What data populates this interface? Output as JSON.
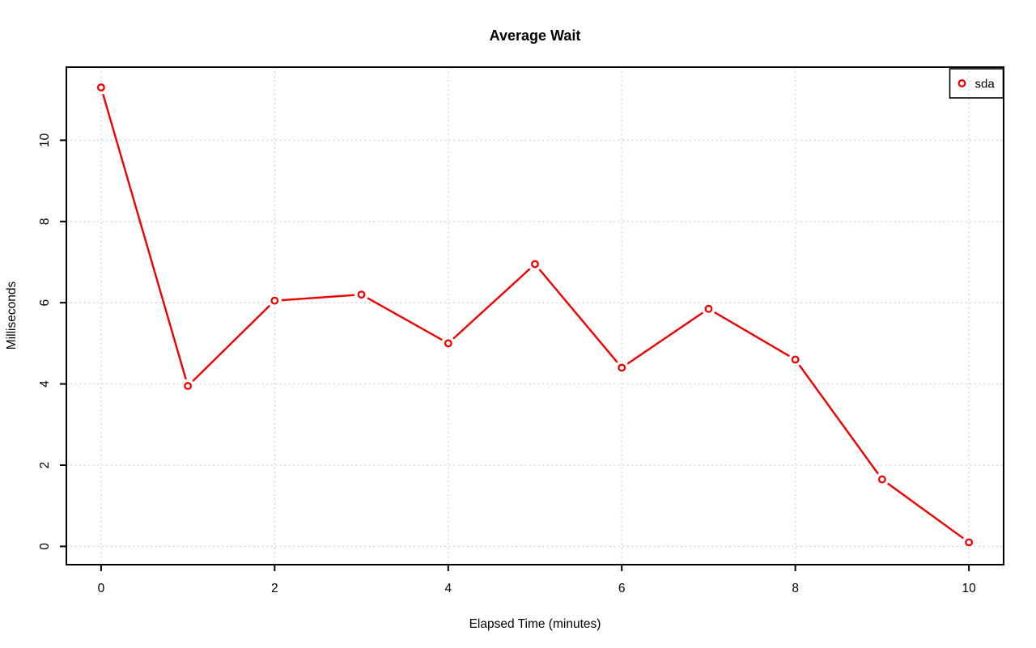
{
  "chart_data": {
    "type": "line",
    "title": "Average Wait",
    "xlabel": "Elapsed Time (minutes)",
    "ylabel": "Milliseconds",
    "x": [
      0,
      1,
      2,
      3,
      4,
      5,
      6,
      7,
      8,
      9,
      10
    ],
    "series": [
      {
        "name": "sda",
        "color": "#ee0000",
        "marker": "open-circle",
        "values": [
          11.3,
          3.95,
          6.05,
          6.2,
          5.0,
          6.95,
          4.4,
          5.85,
          4.6,
          1.65,
          0.1
        ]
      }
    ],
    "x_ticks": [
      0,
      2,
      4,
      6,
      8,
      10
    ],
    "y_ticks": [
      0,
      2,
      4,
      6,
      8,
      10
    ],
    "xlim": [
      -0.4,
      10.4
    ],
    "ylim": [
      -0.45,
      11.8
    ],
    "grid": "dotted",
    "legend_position": "topright",
    "colors": {
      "grid": "#c8c8c8",
      "axis": "#000000",
      "background": "#ffffff"
    }
  }
}
